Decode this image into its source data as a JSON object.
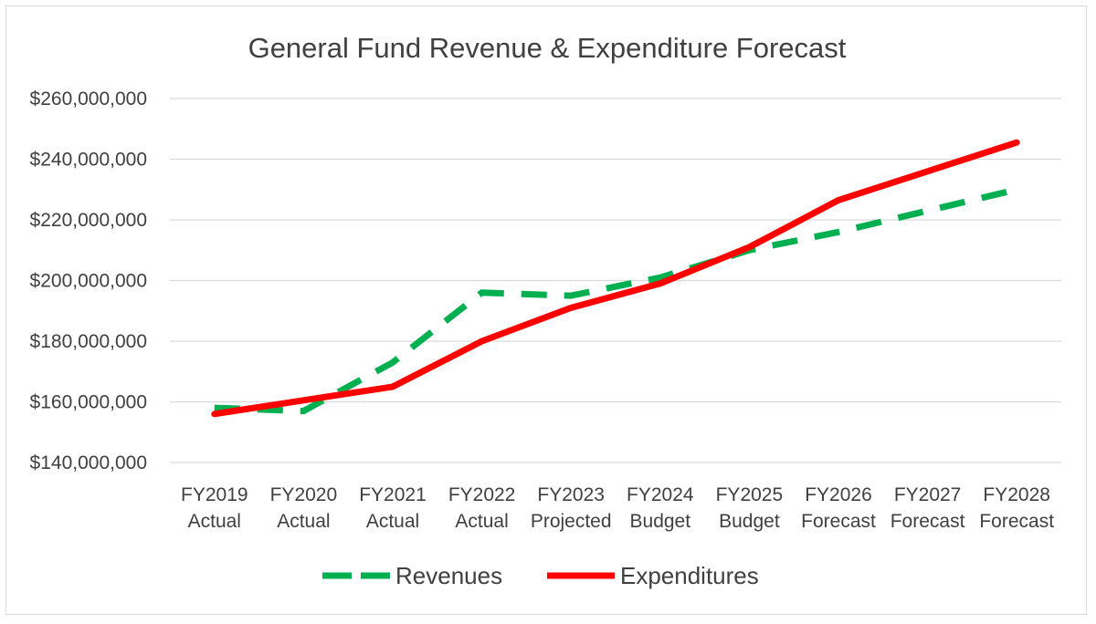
{
  "chart_data": {
    "type": "line",
    "title": "General Fund Revenue & Expenditure Forecast",
    "xlabel": "",
    "ylabel": "",
    "categories": [
      [
        "FY2019",
        "Actual"
      ],
      [
        "FY2020",
        "Actual"
      ],
      [
        "FY2021",
        "Actual"
      ],
      [
        "FY2022",
        "Actual"
      ],
      [
        "FY2023",
        "Projected"
      ],
      [
        "FY2024",
        "Budget"
      ],
      [
        "FY2025",
        "Budget"
      ],
      [
        "FY2026",
        "Forecast"
      ],
      [
        "FY2027",
        "Forecast"
      ],
      [
        "FY2028",
        "Forecast"
      ]
    ],
    "ylim": [
      140000000,
      260000000
    ],
    "yticks": [
      140000000,
      160000000,
      180000000,
      200000000,
      220000000,
      240000000,
      260000000
    ],
    "ytick_labels": [
      "$140,000,000",
      "$160,000,000",
      "$180,000,000",
      "$200,000,000",
      "$220,000,000",
      "$240,000,000",
      "$260,000,000"
    ],
    "grid": true,
    "legend_position": "bottom",
    "series": [
      {
        "name": "Revenues",
        "color": "#00b050",
        "style": "dashed",
        "values": [
          158000000,
          157000000,
          173000000,
          196000000,
          195000000,
          201000000,
          210000000,
          216000000,
          223000000,
          230000000
        ]
      },
      {
        "name": "Expenditures",
        "color": "#ff0000",
        "style": "solid",
        "values": [
          156000000,
          160500000,
          165000000,
          180000000,
          191000000,
          199000000,
          211000000,
          226500000,
          236000000,
          245500000
        ]
      }
    ]
  }
}
